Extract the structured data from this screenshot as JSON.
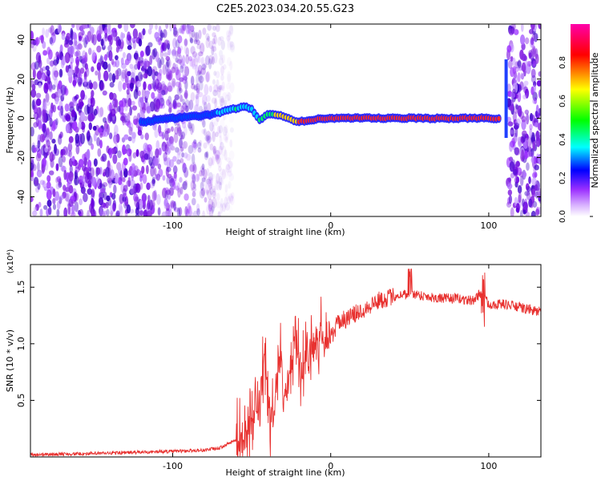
{
  "page_title": "C2E5.2023.034.20.55.G23",
  "chart_data": [
    {
      "type": "heatmap",
      "title": "C2E5.2023.034.20.55.G23",
      "xlabel": "Height of straight line (km)",
      "ylabel": "Frequency (Hz)",
      "xlim": [
        -190,
        133
      ],
      "ylim": [
        -50,
        48
      ],
      "x_ticks": [
        -100,
        0,
        100
      ],
      "x_tick_labels": [
        "-100",
        "0",
        "100"
      ],
      "y_ticks": [
        -40,
        -20,
        0,
        20,
        40
      ],
      "y_tick_labels": [
        "-40",
        "-20",
        "0",
        "20",
        "40"
      ],
      "grid": false,
      "colorbar": {
        "label": "Normalized spectral amplitude",
        "range": [
          0,
          1
        ],
        "ticks": [
          0.0,
          0.2,
          0.4,
          0.6,
          0.8
        ],
        "tick_labels": [
          "0.0",
          "0.2",
          "0.4",
          "0.6",
          "0.8"
        ],
        "colormap": [
          "#ffffff",
          "#9b30ff",
          "#0000ff",
          "#00ffff",
          "#00ff00",
          "#ffff00",
          "#ff0000",
          "#ff00aa"
        ]
      },
      "noise_region_left_x": [
        -190,
        -62
      ],
      "noise_region_right_x": [
        112,
        133
      ],
      "signal_trace": [
        {
          "x": -120,
          "f": -2,
          "amp": 0.3
        },
        {
          "x": -100,
          "f": 0,
          "amp": 0.3
        },
        {
          "x": -85,
          "f": 1,
          "amp": 0.3
        },
        {
          "x": -75,
          "f": 2,
          "amp": 0.35
        },
        {
          "x": -70,
          "f": 3,
          "amp": 0.45
        },
        {
          "x": -65,
          "f": 4,
          "amp": 0.5
        },
        {
          "x": -60,
          "f": 5,
          "amp": 0.55
        },
        {
          "x": -55,
          "f": 6,
          "amp": 0.5
        },
        {
          "x": -50,
          "f": 5,
          "amp": 0.5
        },
        {
          "x": -45,
          "f": -1,
          "amp": 0.55
        },
        {
          "x": -40,
          "f": 2,
          "amp": 0.6
        },
        {
          "x": -35,
          "f": 1.5,
          "amp": 0.7
        },
        {
          "x": -30,
          "f": 1,
          "amp": 0.75
        },
        {
          "x": -25,
          "f": -1,
          "amp": 0.8
        },
        {
          "x": -20,
          "f": -2,
          "amp": 0.85
        },
        {
          "x": -15,
          "f": -1,
          "amp": 0.9
        },
        {
          "x": -5,
          "f": 0,
          "amp": 0.95
        },
        {
          "x": 20,
          "f": 0,
          "amp": 0.98
        },
        {
          "x": 60,
          "f": 0,
          "amp": 0.98
        },
        {
          "x": 100,
          "f": 0,
          "amp": 0.98
        },
        {
          "x": 108,
          "f": 0,
          "amp": 0.9
        }
      ],
      "spike": {
        "x": 111,
        "f_min": -10,
        "f_max": 30
      }
    },
    {
      "type": "line",
      "xlabel": "Height of straight line (km)",
      "ylabel": "SNR (10 * v/v)",
      "y_multiplier_label": "(x10⁴)",
      "xlim": [
        -190,
        133
      ],
      "ylim": [
        0,
        1.7
      ],
      "x_ticks": [
        -100,
        0,
        100
      ],
      "x_tick_labels": [
        "-100",
        "0",
        "100"
      ],
      "y_ticks": [
        0.5,
        1.0,
        1.5
      ],
      "y_tick_labels": [
        "0.5",
        "1.0",
        "1.5"
      ],
      "grid": false,
      "line_color": "#e8312f",
      "series": [
        {
          "x": [
            -190,
            -150,
            -100,
            -80,
            -70,
            -60,
            -50,
            -45,
            -42,
            -40,
            -38,
            -35,
            -32,
            -30,
            -28,
            -25,
            -22,
            -20,
            -18,
            -15,
            -12,
            -10,
            -5,
            0,
            5,
            10,
            20,
            30,
            40,
            50,
            60,
            70,
            80,
            90,
            95,
            100,
            110,
            120,
            133
          ],
          "y": [
            0.02,
            0.03,
            0.05,
            0.06,
            0.08,
            0.15,
            0.28,
            0.5,
            0.85,
            0.6,
            0.3,
            0.55,
            0.95,
            0.65,
            0.5,
            0.8,
            1.1,
            0.8,
            0.75,
            1.05,
            0.9,
            1.05,
            1.1,
            1.05,
            1.2,
            1.22,
            1.3,
            1.38,
            1.42,
            1.45,
            1.42,
            1.4,
            1.4,
            1.38,
            1.45,
            1.35,
            1.35,
            1.32,
            1.28
          ]
        }
      ]
    }
  ]
}
